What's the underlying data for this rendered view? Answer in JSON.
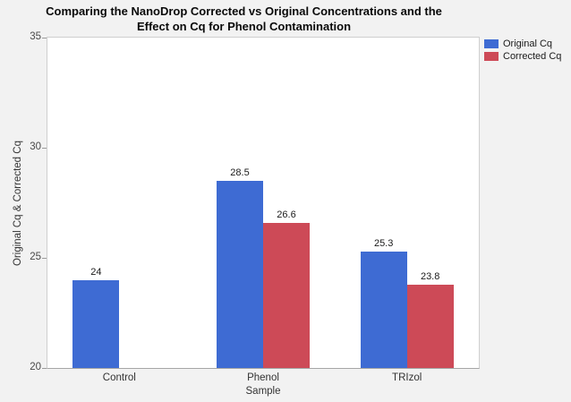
{
  "title": {
    "line1": "Comparing the NanoDrop Corrected vs Original Concentrations and the",
    "line2": "Effect on Cq for Phenol Contamination"
  },
  "legend": [
    {
      "label": "Original Cq",
      "color": "#3E6BD3"
    },
    {
      "label": "Corrected Cq",
      "color": "#CD4A57"
    }
  ],
  "chart_data": {
    "type": "bar",
    "categories": [
      "Control",
      "Phenol",
      "TRIzol"
    ],
    "series": [
      {
        "name": "Original Cq",
        "color": "#3E6BD3",
        "values": [
          24,
          28.5,
          25.3
        ]
      },
      {
        "name": "Corrected Cq",
        "color": "#CD4A57",
        "values": [
          null,
          26.6,
          23.8
        ]
      }
    ],
    "bar_value_labels": [
      [
        "24",
        "28.5",
        "25.3"
      ],
      [
        null,
        "26.6",
        "23.8"
      ]
    ],
    "title": "Comparing the NanoDrop Corrected vs Original Concentrations and the Effect on Cq for Phenol Contamination",
    "xlabel": "Sample",
    "ylabel": "Original Cq & Corrected Cq",
    "ylim": [
      20,
      35
    ],
    "yticks": [
      "20",
      "25",
      "30",
      "35"
    ],
    "grid": false,
    "legend_position": "top-right-outside"
  }
}
